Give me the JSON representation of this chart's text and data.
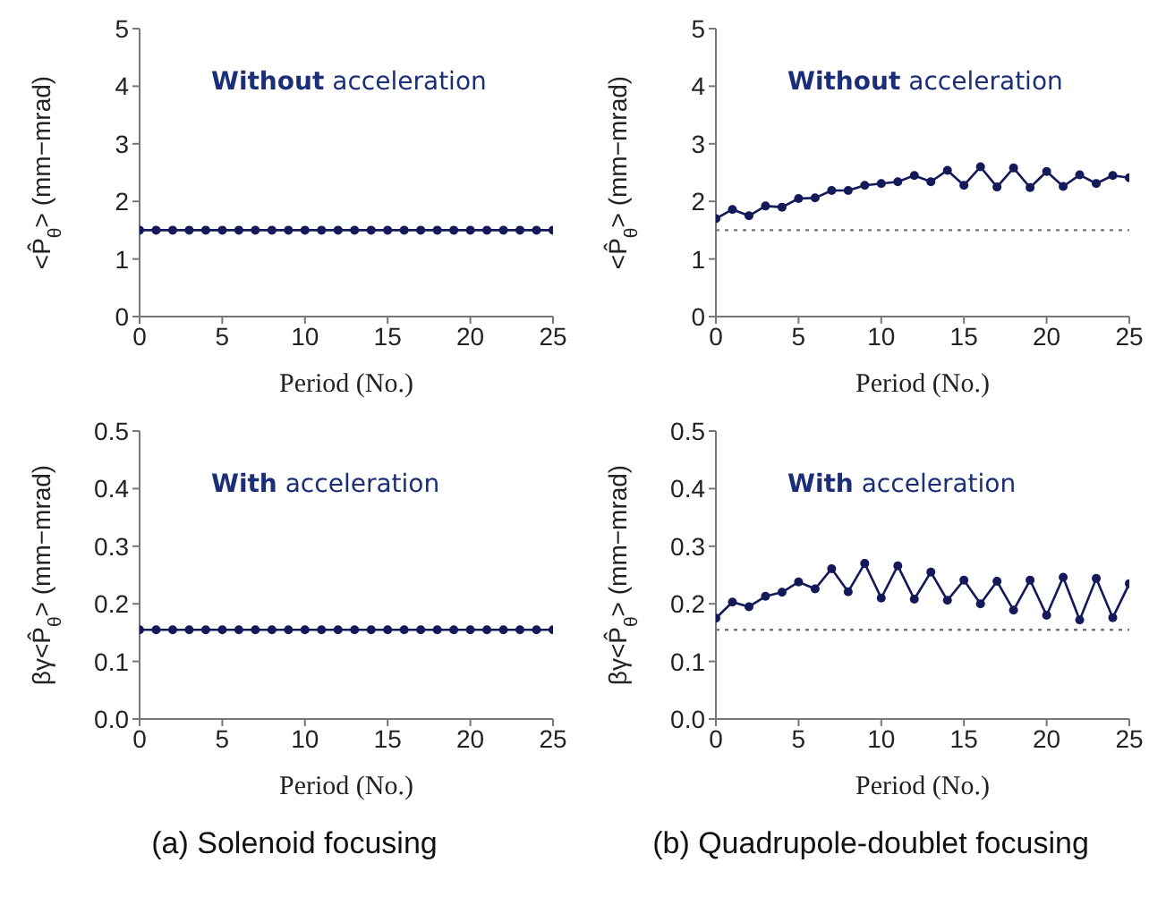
{
  "chart_data": [
    {
      "type": "line",
      "xlabel": "Period (No.)",
      "ylabel": "<P̂$_{θ}$> (mm−mrad)",
      "annotations": [
        "Without acceleration"
      ],
      "marker": "circle",
      "xlim": [
        0,
        25
      ],
      "xticks": [
        0,
        5,
        10,
        15,
        20,
        25
      ],
      "ylim": [
        0,
        5
      ],
      "yticks": [
        0,
        1,
        2,
        3,
        4,
        5
      ],
      "x": [
        0,
        1,
        2,
        3,
        4,
        5,
        6,
        7,
        8,
        9,
        10,
        11,
        12,
        13,
        14,
        15,
        16,
        17,
        18,
        19,
        20,
        21,
        22,
        23,
        24,
        25
      ],
      "series": [
        {
          "color": "#14195a",
          "values": [
            1.5,
            1.5,
            1.5,
            1.5,
            1.5,
            1.5,
            1.5,
            1.5,
            1.5,
            1.5,
            1.5,
            1.5,
            1.5,
            1.5,
            1.5,
            1.5,
            1.5,
            1.5,
            1.5,
            1.5,
            1.5,
            1.5,
            1.5,
            1.5,
            1.5,
            1.5
          ]
        }
      ]
    },
    {
      "type": "line",
      "xlabel": "Period (No.)",
      "ylabel": "<P̂$_{θ}$> (mm−mrad)",
      "annotations": [
        "Without acceleration"
      ],
      "marker": "circle",
      "xlim": [
        0,
        25
      ],
      "xticks": [
        0,
        5,
        10,
        15,
        20,
        25
      ],
      "ylim": [
        0,
        5
      ],
      "yticks": [
        0,
        1,
        2,
        3,
        4,
        5
      ],
      "x": [
        0,
        1,
        2,
        3,
        4,
        5,
        6,
        7,
        8,
        9,
        10,
        11,
        12,
        13,
        14,
        15,
        16,
        17,
        18,
        19,
        20,
        21,
        22,
        23,
        24,
        25
      ],
      "series": [
        {
          "color": "#14195a",
          "values": [
            1.7,
            1.86,
            1.75,
            1.92,
            1.9,
            2.05,
            2.06,
            2.19,
            2.19,
            2.28,
            2.31,
            2.34,
            2.45,
            2.34,
            2.54,
            2.28,
            2.6,
            2.25,
            2.58,
            2.24,
            2.52,
            2.26,
            2.46,
            2.31,
            2.45,
            2.41
          ]
        }
      ],
      "ref_lines": [
        {
          "axis": "y",
          "value": 1.5,
          "color": "#777777",
          "line_style": "dotted"
        }
      ]
    },
    {
      "type": "line",
      "xlabel": "Period (No.)",
      "ylabel": "βγ<P̂$_{θ}$> (mm−mrad)",
      "annotations": [
        "With acceleration",
        "(a) Solenoid focusing"
      ],
      "marker": "circle",
      "xlim": [
        0,
        25
      ],
      "xticks": [
        0,
        5,
        10,
        15,
        20,
        25
      ],
      "ylim": [
        0,
        0.5
      ],
      "yticks": [
        {
          "value": 0,
          "label": "0.0"
        },
        0.1,
        0.2,
        0.3,
        0.4,
        0.5
      ],
      "x": [
        0,
        1,
        2,
        3,
        4,
        5,
        6,
        7,
        8,
        9,
        10,
        11,
        12,
        13,
        14,
        15,
        16,
        17,
        18,
        19,
        20,
        21,
        22,
        23,
        24,
        25
      ],
      "series": [
        {
          "color": "#14195a",
          "values": [
            0.155,
            0.155,
            0.155,
            0.155,
            0.155,
            0.155,
            0.155,
            0.155,
            0.155,
            0.155,
            0.155,
            0.155,
            0.155,
            0.155,
            0.155,
            0.155,
            0.155,
            0.155,
            0.155,
            0.155,
            0.155,
            0.155,
            0.155,
            0.155,
            0.155,
            0.155
          ]
        }
      ]
    },
    {
      "type": "line",
      "xlabel": "Period (No.)",
      "ylabel": "βγ<P̂$_{θ}$> (mm−mrad)",
      "annotations": [
        "With acceleration",
        "(b) Quadrupole-doublet focusing"
      ],
      "marker": "circle",
      "xlim": [
        0,
        25
      ],
      "xticks": [
        0,
        5,
        10,
        15,
        20,
        25
      ],
      "ylim": [
        0,
        0.5
      ],
      "yticks": [
        {
          "value": 0,
          "label": "0.0"
        },
        0.1,
        0.2,
        0.3,
        0.4,
        0.5
      ],
      "x": [
        0,
        1,
        2,
        3,
        4,
        5,
        6,
        7,
        8,
        9,
        10,
        11,
        12,
        13,
        14,
        15,
        16,
        17,
        18,
        19,
        20,
        21,
        22,
        23,
        24,
        25
      ],
      "series": [
        {
          "color": "#14195a",
          "values": [
            0.175,
            0.203,
            0.195,
            0.213,
            0.22,
            0.238,
            0.226,
            0.261,
            0.221,
            0.27,
            0.21,
            0.266,
            0.208,
            0.255,
            0.206,
            0.241,
            0.2,
            0.239,
            0.189,
            0.241,
            0.18,
            0.246,
            0.172,
            0.244,
            0.176,
            0.235
          ]
        }
      ],
      "ref_lines": [
        {
          "axis": "y",
          "value": 0.155,
          "color": "#777777",
          "line_style": "dotted"
        }
      ]
    }
  ]
}
